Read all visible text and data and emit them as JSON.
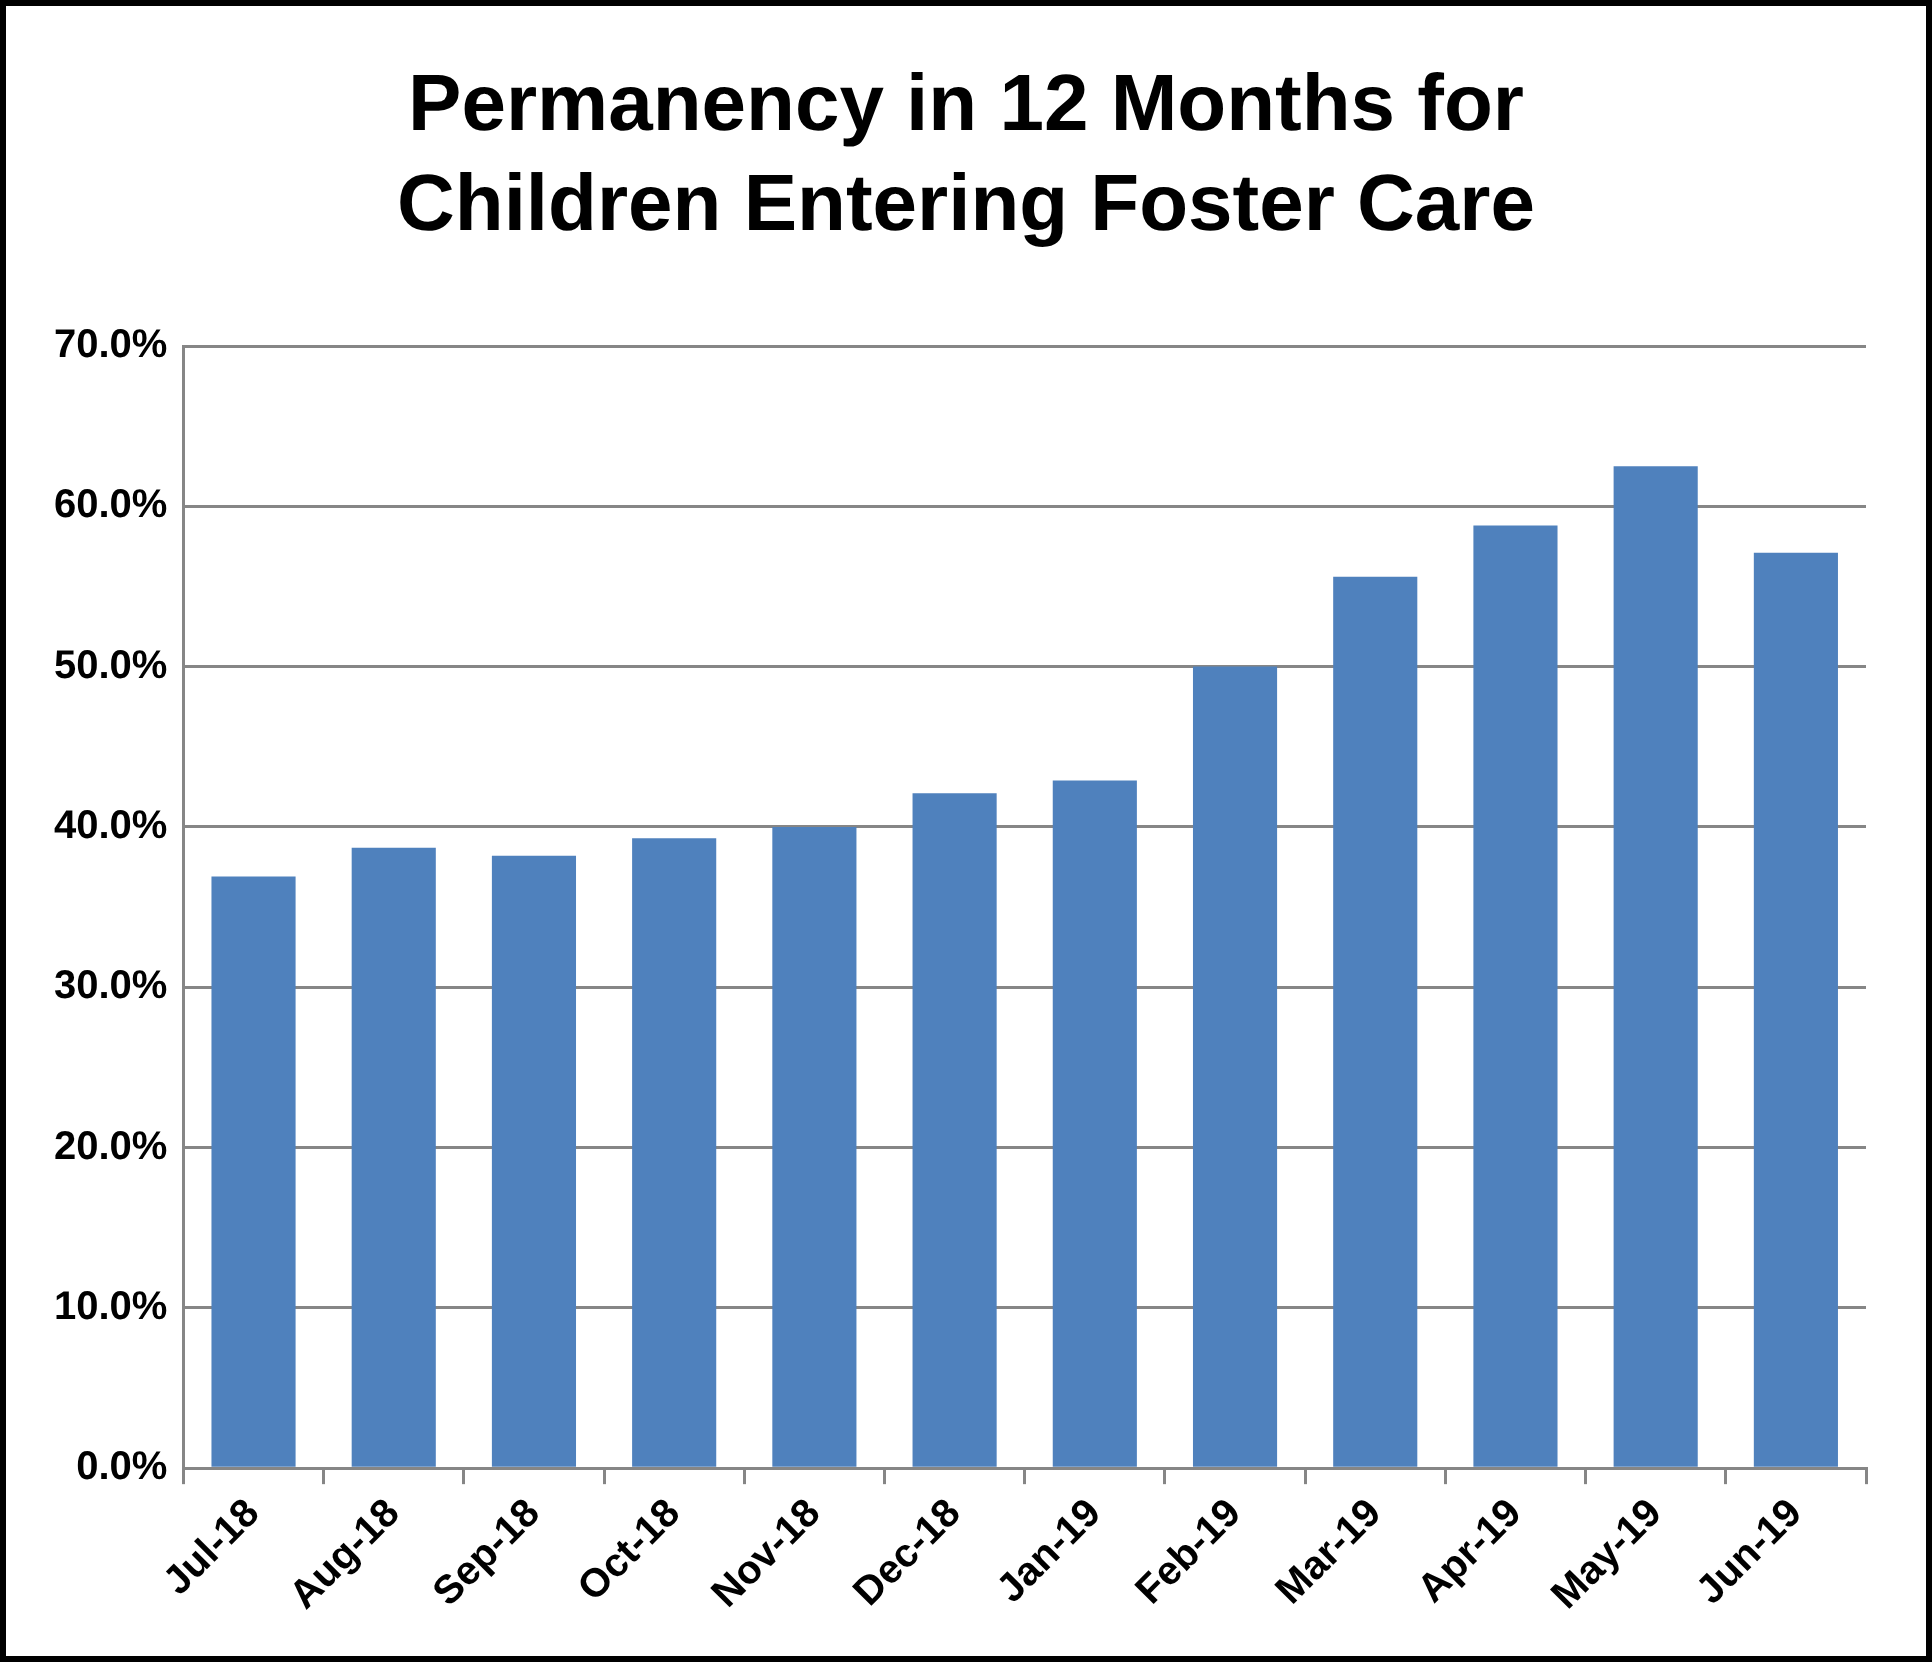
{
  "chart_data": {
    "type": "bar",
    "title": "Permanency in 12 Months for Children Entering Foster Care",
    "categories": [
      "Jul-18",
      "Aug-18",
      "Sep-18",
      "Oct-18",
      "Nov-18",
      "Dec-18",
      "Jan-19",
      "Feb-19",
      "Mar-19",
      "Apr-19",
      "May-19",
      "Jun-19"
    ],
    "values": [
      36.9,
      38.7,
      38.2,
      39.3,
      40.0,
      42.1,
      42.9,
      50.0,
      55.6,
      58.8,
      62.5,
      57.1
    ],
    "color": "#4f81bd",
    "ylim": [
      0,
      70
    ],
    "yticks": [
      {
        "value": 0,
        "label": "0.0%"
      },
      {
        "value": 10,
        "label": "10.0%"
      },
      {
        "value": 20,
        "label": "20.0%"
      },
      {
        "value": 30,
        "label": "30.0%"
      },
      {
        "value": 40,
        "label": "40.0%"
      },
      {
        "value": 50,
        "label": "50.0%"
      },
      {
        "value": 60,
        "label": "60.0%"
      },
      {
        "value": 70,
        "label": "70.0%"
      }
    ],
    "grid": "y"
  }
}
